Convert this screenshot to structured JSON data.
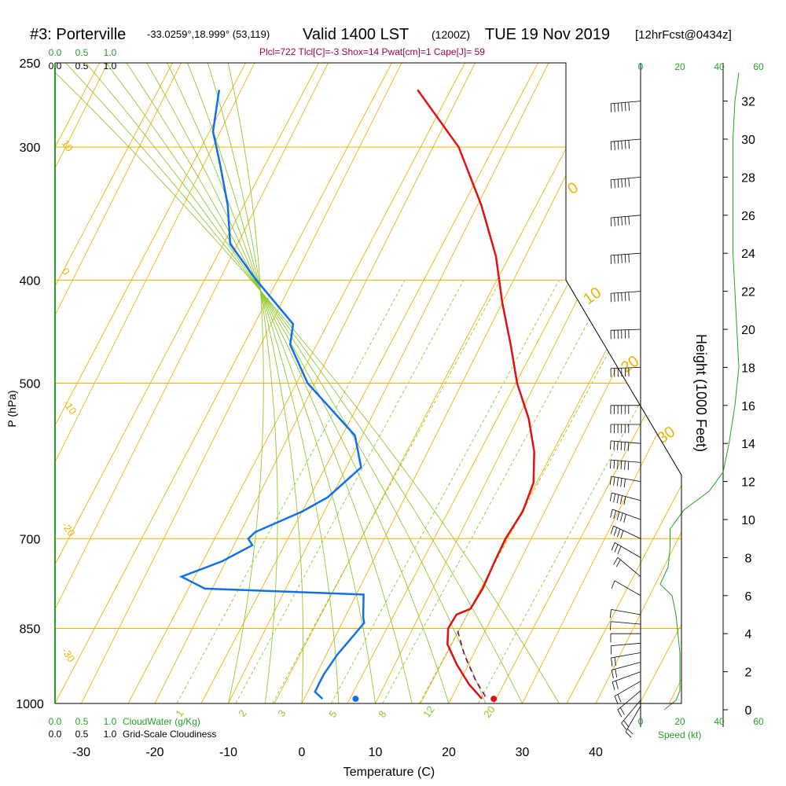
{
  "header": {
    "station": "#3: Porterville",
    "coords": "-33.0259°,18.999° (53,119)",
    "valid": "Valid 1400 LST",
    "zulu": "(1200Z)",
    "date": "TUE 19 Nov 2019",
    "forecast": "[12hrFcst@0434z]"
  },
  "indices": "Plcl=722 Tlcl[C]=-3 Shox=14 Pwat[cm]=1 Cape[J]= 59",
  "colors": {
    "isotherm": "#f0b000",
    "dry_adiabat": "#f0b000",
    "moist_adiabat": "#90c830",
    "mixing_ratio": "#90c830",
    "temperature": "#e01010",
    "dewpoint": "#1070e8",
    "parcel": "#800060",
    "cloud_water": "#22a022",
    "wind_profile": "#22a022",
    "indices_text": "#a0004a"
  },
  "axes": {
    "xlabel": "Temperature (C)",
    "ylabel": "P (hPa)",
    "right_label": "Height (1000 Feet)",
    "speed_label": "Speed (kt)",
    "cloud_water_label": "CloudWater (g/Kg)",
    "cloudiness_label": "Grid-Scale Cloudiness"
  },
  "chart_data": {
    "type": "line",
    "title": "#3: Porterville Valid 1400 LST (1200Z) TUE 19 Nov 2019",
    "pressure_ticks": [
      "250",
      "300",
      "400",
      "500",
      "700",
      "850",
      "1000"
    ],
    "temperature_ticks": [
      "-30",
      "-20",
      "-10",
      "0",
      "10",
      "20",
      "30",
      "40"
    ],
    "height_ticks": [
      "0",
      "2",
      "4",
      "6",
      "8",
      "10",
      "12",
      "14",
      "16",
      "18",
      "20",
      "22",
      "24",
      "26",
      "28",
      "30",
      "32"
    ],
    "speed_ticks": [
      "0",
      "20",
      "40",
      "60"
    ],
    "cloud_ticks_top": [
      "0.0",
      "0.5",
      "1.0"
    ],
    "cloudiness_ticks": [
      "0.0",
      "0.5",
      "1.0"
    ],
    "dry_adiabat_labels": [
      "10",
      "0",
      "-10",
      "-20",
      "-30"
    ],
    "moist_adiabat_labels": [
      "0",
      "10",
      "20",
      "30"
    ],
    "mixing_ratio_labels": [
      "1",
      "2",
      "3",
      "5",
      "8",
      "12",
      "20"
    ],
    "series": [
      {
        "name": "Temperature",
        "p": [
          990,
          960,
          920,
          880,
          850,
          825,
          815,
          780,
          740,
          700,
          660,
          620,
          580,
          540,
          500,
          460,
          420,
          380,
          340,
          300,
          265
        ],
        "t": [
          24.2,
          21.5,
          18.5,
          15.8,
          14.8,
          15.0,
          16.5,
          16.8,
          16.6,
          16.5,
          17.0,
          16.5,
          14.5,
          11.5,
          7.5,
          4.0,
          0.0,
          -4.0,
          -9.5,
          -16.5,
          -26.0
        ]
      },
      {
        "name": "Dewpoint",
        "p": [
          990,
          975,
          940,
          900,
          860,
          840,
          830,
          790,
          780,
          760,
          735,
          710,
          700,
          690,
          660,
          640,
          600,
          560,
          500,
          460,
          440,
          400,
          370,
          340,
          310,
          290,
          265
        ],
        "t": [
          2.5,
          1.0,
          1.0,
          1.5,
          2.5,
          3.0,
          2.5,
          1.0,
          -21.0,
          -25.0,
          -20.5,
          -17.5,
          -18.5,
          -18.0,
          -13.0,
          -10.5,
          -8.0,
          -11.0,
          -21.0,
          -26.0,
          -27.0,
          -35.0,
          -41.0,
          -44.0,
          -48.0,
          -51.0,
          -53.0
        ]
      },
      {
        "name": "Parcel",
        "p": [
          985,
          950,
          900,
          850
        ],
        "t": [
          24.5,
          22.0,
          18.8,
          16.0
        ]
      }
    ],
    "surface_temperature": 25.8,
    "surface_dewpoint": 7.0,
    "cloud_water_profile": {
      "height_kft": [
        0,
        0.5,
        1,
        2,
        3,
        4,
        5,
        6,
        6.6,
        7.5,
        8.5,
        9.5,
        10.5,
        11.5,
        12.5,
        14,
        16,
        18,
        20,
        22,
        24,
        26,
        28,
        30,
        32,
        33.5
      ],
      "speed_kt": [
        12,
        18,
        20,
        20,
        20,
        19,
        18,
        16,
        10,
        14,
        15,
        15,
        22,
        35,
        42,
        45,
        48,
        50,
        49,
        48,
        47,
        47,
        47,
        47,
        48,
        50
      ]
    },
    "wind_barbs": {
      "height_kft": [
        0.2,
        0.5,
        1,
        1.5,
        2,
        2.5,
        3,
        3.5,
        4,
        4.5,
        5,
        6,
        7,
        8,
        9,
        10,
        11,
        12,
        13,
        14,
        15,
        16,
        18,
        20,
        22,
        24,
        26,
        28,
        30,
        32
      ],
      "direction_deg": [
        210,
        220,
        230,
        240,
        250,
        255,
        260,
        265,
        270,
        275,
        280,
        300,
        310,
        300,
        295,
        290,
        285,
        280,
        275,
        275,
        270,
        270,
        268,
        268,
        266,
        266,
        265,
        265,
        265,
        265
      ],
      "speed_kt": [
        15,
        15,
        18,
        18,
        20,
        18,
        16,
        14,
        12,
        12,
        10,
        10,
        15,
        25,
        35,
        45,
        45,
        50,
        55,
        55,
        60,
        60,
        65,
        65,
        70,
        70,
        75,
        75,
        75,
        70
      ]
    }
  }
}
